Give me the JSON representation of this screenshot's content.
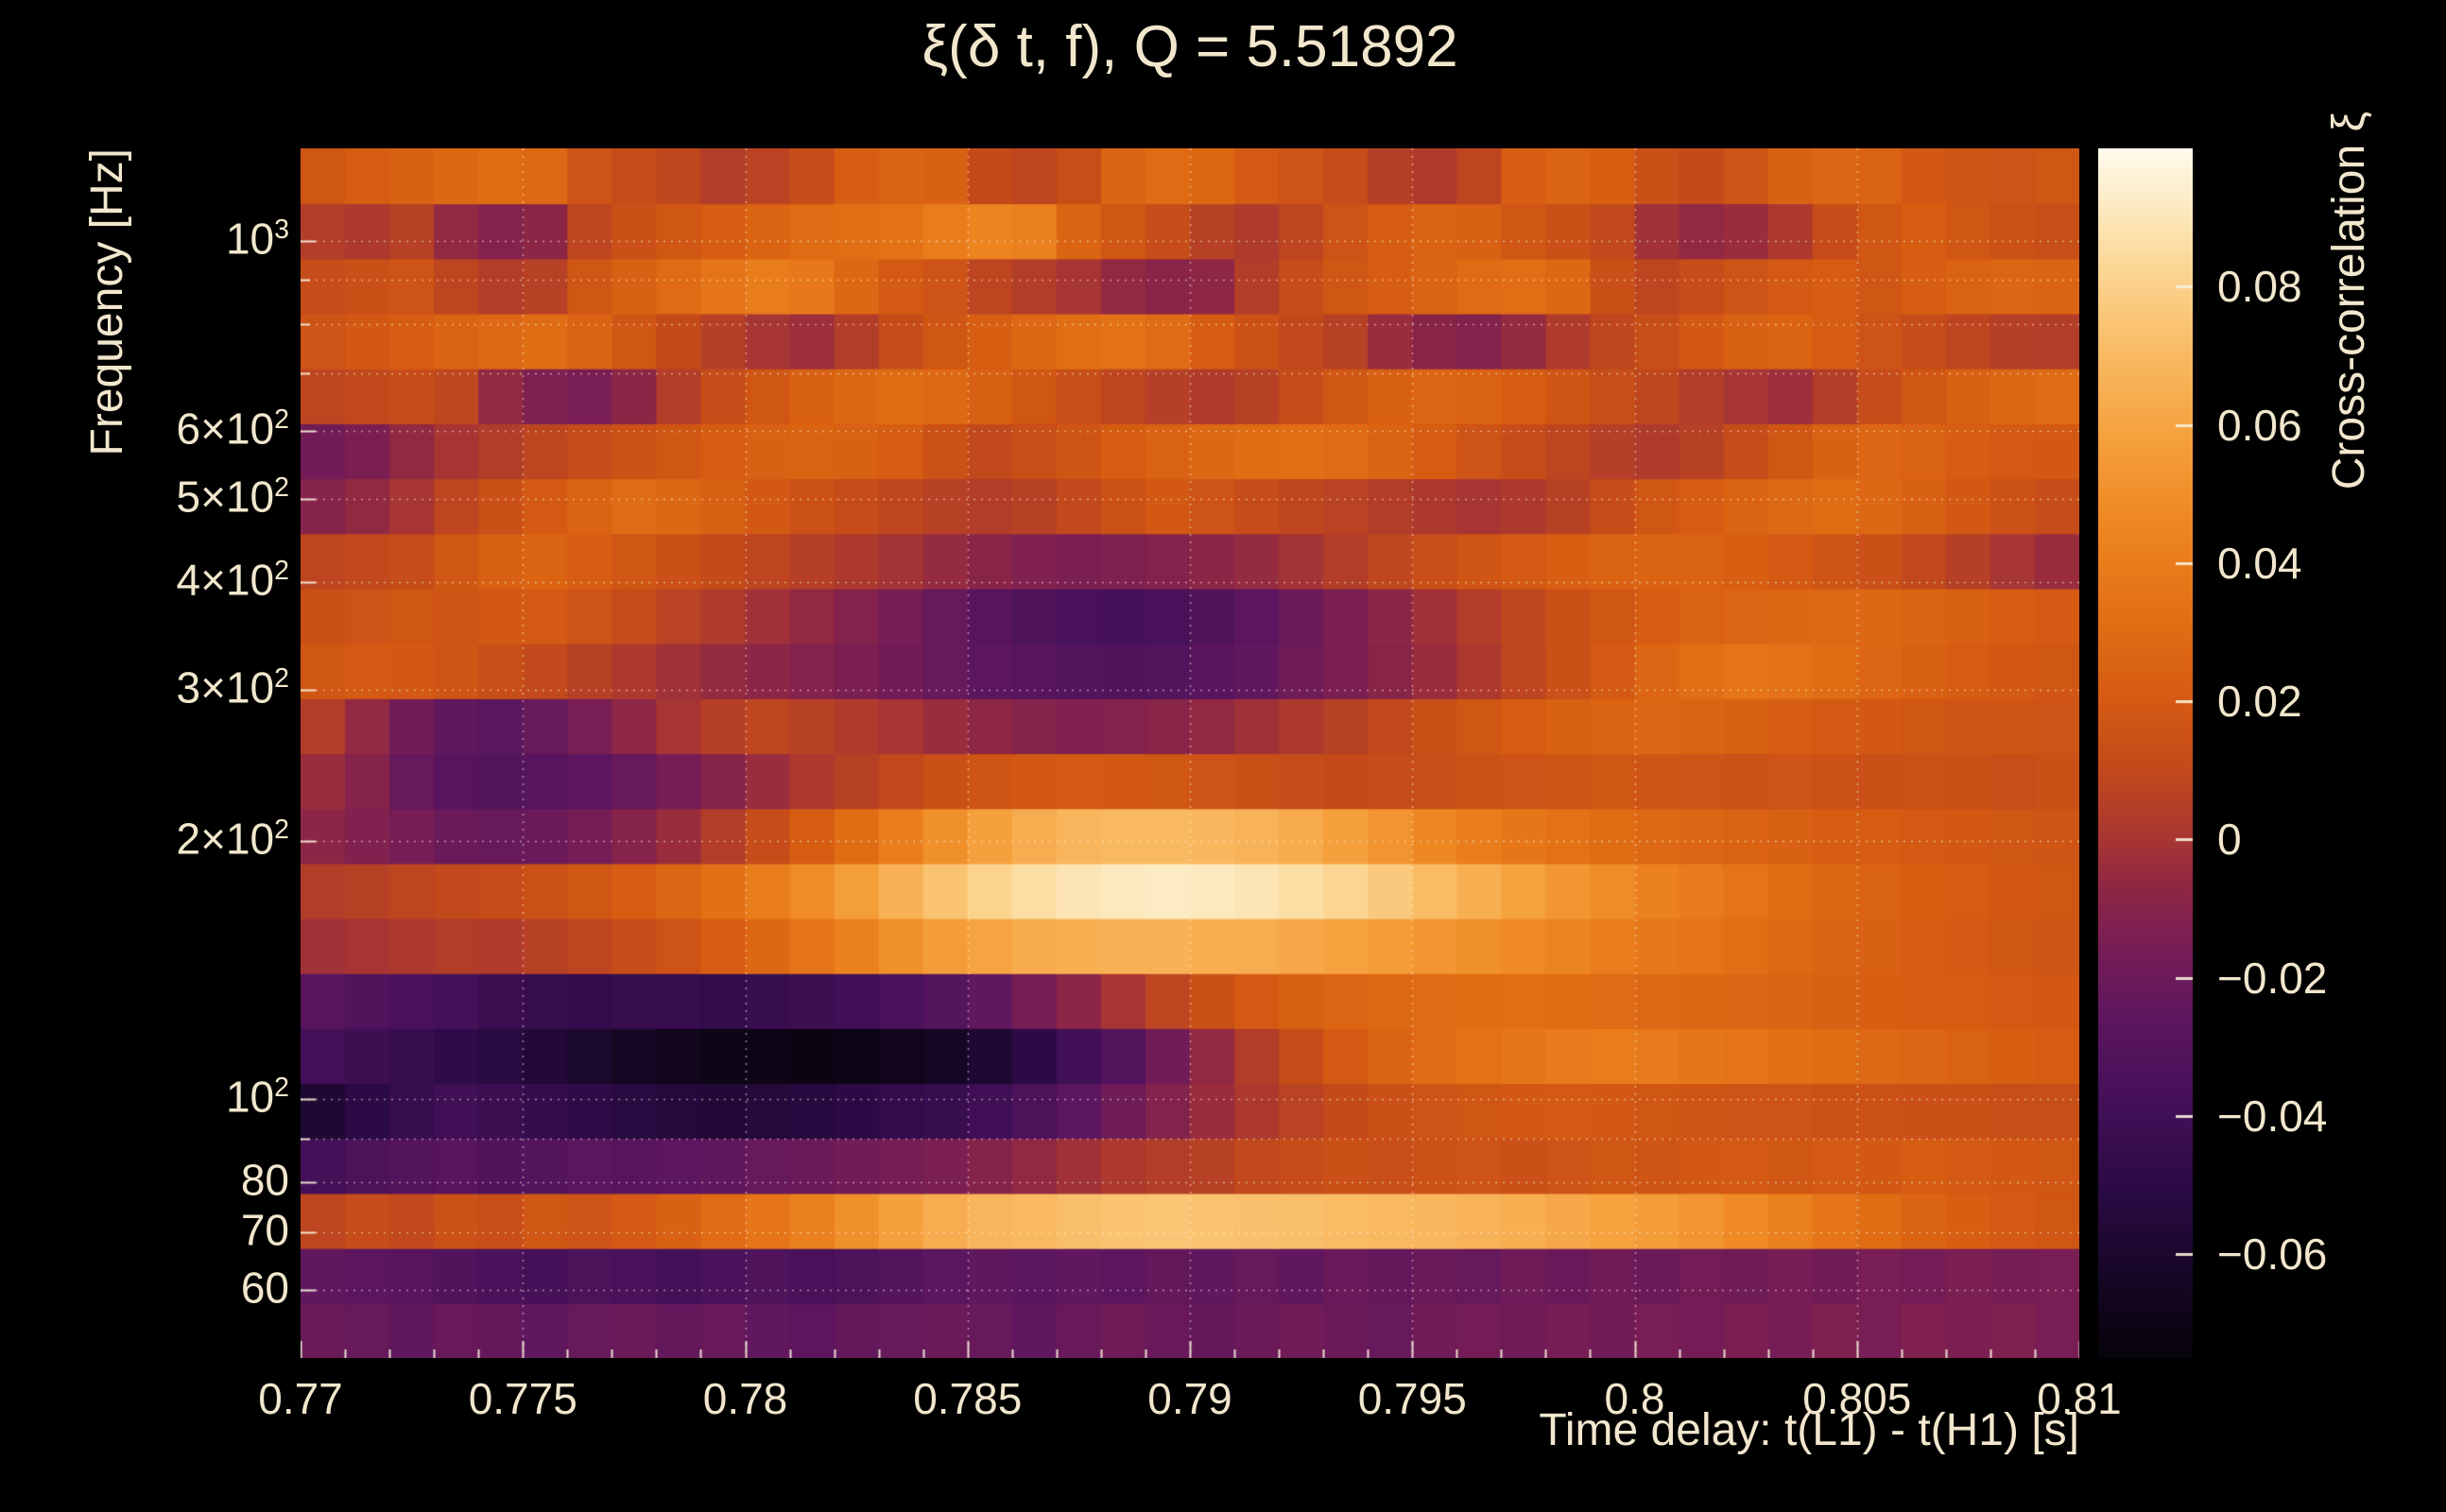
{
  "theme": {
    "background": "#000000",
    "text_color": "#f2e7cd",
    "grid_color": "rgba(255,246,224,0.55)",
    "tick_color": "rgba(248,240,220,0.9)"
  },
  "chart_data": {
    "type": "heatmap",
    "title": "ξ(δ t, f), Q = 5.51892",
    "xlabel": "Time delay: t(L1) - t(H1) [s]",
    "ylabel": "Frequency [Hz]",
    "colorbar_label": "Cross-correlation ξ",
    "x_range": [
      0.77,
      0.81
    ],
    "x_ticks": [
      0.77,
      0.775,
      0.78,
      0.785,
      0.79,
      0.795,
      0.8,
      0.805,
      0.81
    ],
    "x_tick_labels": [
      "0.77",
      "0.775",
      "0.78",
      "0.785",
      "0.79",
      "0.795",
      "0.8",
      "0.805",
      "0.81"
    ],
    "x_minor_step": 0.001,
    "y_scale": "log",
    "y_range": [
      50,
      1280.6
    ],
    "y_ticks": [
      {
        "value": 1000,
        "base": "10",
        "exp": "3"
      },
      {
        "value": 600,
        "base": "6×10",
        "exp": "2"
      },
      {
        "value": 500,
        "base": "5×10",
        "exp": "2"
      },
      {
        "value": 400,
        "base": "4×10",
        "exp": "2"
      },
      {
        "value": 300,
        "base": "3×10",
        "exp": "2"
      },
      {
        "value": 200,
        "base": "2×10",
        "exp": "2"
      },
      {
        "value": 100,
        "base": "10",
        "exp": "2"
      },
      {
        "value": 80,
        "base": "80",
        "exp": ""
      },
      {
        "value": 70,
        "base": "70",
        "exp": ""
      },
      {
        "value": 60,
        "base": "60",
        "exp": ""
      }
    ],
    "y_gridlines": [
      60,
      70,
      80,
      90,
      100,
      200,
      300,
      400,
      500,
      600,
      700,
      800,
      900,
      1000
    ],
    "color_scale": {
      "min": -0.075,
      "max": 0.1,
      "ticks": [
        0.08,
        0.06,
        0.04,
        0.02,
        0,
        -0.02,
        -0.04,
        -0.06
      ],
      "tick_labels": [
        "0.08",
        "0.06",
        "0.04",
        "0.02",
        "0",
        "−0.02",
        "−0.04",
        "−0.06"
      ]
    },
    "colormap_stops": [
      [
        0.0,
        "#060309"
      ],
      [
        0.07,
        "#170726"
      ],
      [
        0.14,
        "#2b0a45"
      ],
      [
        0.21,
        "#431058"
      ],
      [
        0.28,
        "#5c165f"
      ],
      [
        0.34,
        "#771d55"
      ],
      [
        0.39,
        "#8f2745"
      ],
      [
        0.43,
        "#a83632"
      ],
      [
        0.49,
        "#c44a1a"
      ],
      [
        0.55,
        "#d65c12"
      ],
      [
        0.62,
        "#e37115"
      ],
      [
        0.69,
        "#ee8722"
      ],
      [
        0.76,
        "#f5a03c"
      ],
      [
        0.83,
        "#f9ba62"
      ],
      [
        0.9,
        "#fbd693"
      ],
      [
        0.96,
        "#fdedc8"
      ],
      [
        1.0,
        "#fffbee"
      ]
    ],
    "freq_edges": [
      50,
      57.94,
      67.14,
      77.81,
      90.17,
      104.5,
      121.1,
      140.3,
      162.6,
      188.4,
      218.3,
      253.0,
      293.2,
      339.8,
      393.7,
      456.3,
      528.8,
      612.8,
      710.1,
      822.9,
      953.6,
      1105.2,
      1280.6
    ],
    "time_edge_start": 0.77,
    "time_step": 0.001,
    "n_cols": 40,
    "rows_order": "low-to-high-frequency",
    "values": [
      [
        -0.02,
        -0.022,
        -0.024,
        -0.021,
        -0.023,
        -0.025,
        -0.022,
        -0.02,
        -0.023,
        -0.021,
        -0.024,
        -0.026,
        -0.023,
        -0.022,
        -0.02,
        -0.022,
        -0.024,
        -0.021,
        -0.019,
        -0.021,
        -0.023,
        -0.02,
        -0.018,
        -0.02,
        -0.022,
        -0.019,
        -0.017,
        -0.019,
        -0.016,
        -0.018,
        -0.015,
        -0.017,
        -0.014,
        -0.016,
        -0.013,
        -0.015,
        -0.012,
        -0.014,
        -0.013,
        -0.015
      ],
      [
        -0.024,
        -0.026,
        -0.028,
        -0.032,
        -0.035,
        -0.037,
        -0.034,
        -0.036,
        -0.038,
        -0.035,
        -0.033,
        -0.036,
        -0.034,
        -0.03,
        -0.027,
        -0.025,
        -0.027,
        -0.024,
        -0.026,
        -0.023,
        -0.025,
        -0.022,
        -0.024,
        -0.021,
        -0.023,
        -0.02,
        -0.022,
        -0.019,
        -0.021,
        -0.018,
        -0.02,
        -0.017,
        -0.019,
        -0.016,
        -0.018,
        -0.015,
        -0.017,
        -0.014,
        -0.016,
        -0.015
      ],
      [
        0.008,
        0.012,
        0.01,
        0.015,
        0.013,
        0.018,
        0.016,
        0.02,
        0.024,
        0.03,
        0.036,
        0.042,
        0.05,
        0.058,
        0.064,
        0.068,
        0.07,
        0.072,
        0.074,
        0.075,
        0.074,
        0.073,
        0.072,
        0.071,
        0.07,
        0.069,
        0.067,
        0.065,
        0.062,
        0.059,
        0.056,
        0.052,
        0.047,
        0.042,
        0.036,
        0.031,
        0.026,
        0.023,
        0.02,
        0.018
      ],
      [
        -0.038,
        -0.034,
        -0.03,
        -0.028,
        -0.032,
        -0.03,
        -0.027,
        -0.029,
        -0.026,
        -0.024,
        -0.022,
        -0.02,
        -0.018,
        -0.016,
        -0.014,
        -0.01,
        -0.006,
        -0.002,
        0.002,
        0.004,
        0.006,
        0.01,
        0.012,
        0.014,
        0.013,
        0.015,
        0.016,
        0.014,
        0.016,
        0.018,
        0.017,
        0.019,
        0.02,
        0.018,
        0.02,
        0.019,
        0.021,
        0.02,
        0.019,
        0.018
      ],
      [
        -0.058,
        -0.05,
        -0.044,
        -0.04,
        -0.043,
        -0.046,
        -0.049,
        -0.052,
        -0.054,
        -0.056,
        -0.055,
        -0.053,
        -0.05,
        -0.047,
        -0.044,
        -0.04,
        -0.034,
        -0.027,
        -0.019,
        -0.011,
        -0.004,
        0.002,
        0.007,
        0.011,
        0.014,
        0.016,
        0.018,
        0.019,
        0.02,
        0.019,
        0.018,
        0.017,
        0.016,
        0.016,
        0.015,
        0.015,
        0.014,
        0.014,
        0.013,
        0.013
      ],
      [
        -0.038,
        -0.042,
        -0.045,
        -0.048,
        -0.052,
        -0.056,
        -0.06,
        -0.064,
        -0.067,
        -0.069,
        -0.07,
        -0.071,
        -0.07,
        -0.068,
        -0.064,
        -0.058,
        -0.05,
        -0.04,
        -0.03,
        -0.018,
        -0.006,
        0.004,
        0.012,
        0.02,
        0.026,
        0.03,
        0.034,
        0.037,
        0.039,
        0.04,
        0.039,
        0.037,
        0.035,
        0.033,
        0.031,
        0.029,
        0.027,
        0.025,
        0.023,
        0.021
      ],
      [
        -0.028,
        -0.032,
        -0.035,
        -0.038,
        -0.042,
        -0.044,
        -0.046,
        -0.045,
        -0.044,
        -0.046,
        -0.044,
        -0.042,
        -0.04,
        -0.036,
        -0.03,
        -0.024,
        -0.016,
        -0.008,
        0.0,
        0.008,
        0.014,
        0.02,
        0.024,
        0.027,
        0.029,
        0.03,
        0.031,
        0.032,
        0.031,
        0.03,
        0.029,
        0.028,
        0.027,
        0.026,
        0.024,
        0.023,
        0.022,
        0.021,
        0.02,
        0.019
      ],
      [
        -0.002,
        0.0,
        0.002,
        0.004,
        0.003,
        0.006,
        0.008,
        0.012,
        0.016,
        0.022,
        0.028,
        0.035,
        0.042,
        0.05,
        0.056,
        0.06,
        0.063,
        0.065,
        0.066,
        0.066,
        0.065,
        0.064,
        0.062,
        0.059,
        0.056,
        0.053,
        0.05,
        0.047,
        0.044,
        0.041,
        0.038,
        0.035,
        0.032,
        0.029,
        0.026,
        0.024,
        0.022,
        0.02,
        0.018,
        0.017
      ],
      [
        0.004,
        0.006,
        0.008,
        0.01,
        0.012,
        0.015,
        0.018,
        0.022,
        0.027,
        0.033,
        0.04,
        0.048,
        0.057,
        0.066,
        0.074,
        0.081,
        0.086,
        0.089,
        0.091,
        0.092,
        0.091,
        0.089,
        0.086,
        0.082,
        0.077,
        0.071,
        0.065,
        0.059,
        0.053,
        0.048,
        0.043,
        0.039,
        0.035,
        0.031,
        0.028,
        0.025,
        0.023,
        0.021,
        0.019,
        0.018
      ],
      [
        -0.008,
        -0.012,
        -0.016,
        -0.02,
        -0.022,
        -0.02,
        -0.016,
        -0.01,
        -0.004,
        0.004,
        0.012,
        0.021,
        0.031,
        0.041,
        0.05,
        0.058,
        0.064,
        0.068,
        0.07,
        0.07,
        0.069,
        0.067,
        0.063,
        0.058,
        0.052,
        0.046,
        0.041,
        0.037,
        0.034,
        0.031,
        0.029,
        0.027,
        0.025,
        0.024,
        0.022,
        0.021,
        0.02,
        0.019,
        0.018,
        0.017
      ],
      [
        -0.004,
        -0.01,
        -0.022,
        -0.028,
        -0.031,
        -0.029,
        -0.026,
        -0.022,
        -0.016,
        -0.01,
        -0.004,
        0.002,
        0.006,
        0.01,
        0.014,
        0.017,
        0.019,
        0.02,
        0.019,
        0.018,
        0.016,
        0.014,
        0.012,
        0.011,
        0.012,
        0.013,
        0.015,
        0.016,
        0.017,
        0.018,
        0.017,
        0.016,
        0.015,
        0.016,
        0.015,
        0.014,
        0.015,
        0.014,
        0.013,
        0.014
      ],
      [
        0.004,
        -0.006,
        -0.018,
        -0.025,
        -0.027,
        -0.022,
        -0.015,
        -0.007,
        0.0,
        0.005,
        0.008,
        0.006,
        0.003,
        0.0,
        -0.004,
        -0.007,
        -0.01,
        -0.012,
        -0.011,
        -0.009,
        -0.006,
        -0.002,
        0.002,
        0.006,
        0.01,
        0.014,
        0.018,
        0.021,
        0.024,
        0.026,
        0.027,
        0.026,
        0.024,
        0.022,
        0.02,
        0.019,
        0.018,
        0.017,
        0.017,
        0.016
      ],
      [
        0.018,
        0.02,
        0.019,
        0.017,
        0.013,
        0.01,
        0.006,
        0.002,
        -0.002,
        -0.005,
        -0.008,
        -0.011,
        -0.014,
        -0.018,
        -0.022,
        -0.026,
        -0.029,
        -0.031,
        -0.032,
        -0.031,
        -0.028,
        -0.024,
        -0.019,
        -0.014,
        -0.009,
        -0.004,
        0.002,
        0.008,
        0.014,
        0.02,
        0.027,
        0.032,
        0.035,
        0.034,
        0.031,
        0.027,
        0.024,
        0.021,
        0.019,
        0.018
      ],
      [
        0.014,
        0.016,
        0.018,
        0.017,
        0.019,
        0.02,
        0.016,
        0.012,
        0.007,
        0.003,
        -0.002,
        -0.006,
        -0.011,
        -0.016,
        -0.022,
        -0.028,
        -0.033,
        -0.036,
        -0.037,
        -0.036,
        -0.032,
        -0.026,
        -0.02,
        -0.014,
        -0.008,
        -0.002,
        0.004,
        0.009,
        0.014,
        0.018,
        0.022,
        0.025,
        0.027,
        0.028,
        0.029,
        0.028,
        0.026,
        0.024,
        0.022,
        0.02
      ],
      [
        0.008,
        0.01,
        0.012,
        0.018,
        0.024,
        0.026,
        0.022,
        0.018,
        0.014,
        0.011,
        0.008,
        0.005,
        0.002,
        -0.001,
        -0.005,
        -0.009,
        -0.012,
        -0.014,
        -0.013,
        -0.011,
        -0.008,
        -0.005,
        -0.001,
        0.004,
        0.009,
        0.013,
        0.017,
        0.02,
        0.023,
        0.025,
        0.026,
        0.025,
        0.023,
        0.02,
        0.017,
        0.014,
        0.01,
        0.005,
        0.0,
        -0.004
      ],
      [
        -0.01,
        -0.006,
        0.0,
        0.008,
        0.014,
        0.02,
        0.026,
        0.03,
        0.028,
        0.024,
        0.019,
        0.015,
        0.012,
        0.009,
        0.006,
        0.004,
        0.006,
        0.01,
        0.015,
        0.019,
        0.016,
        0.012,
        0.009,
        0.007,
        0.004,
        0.002,
        0.0,
        0.002,
        0.006,
        0.012,
        0.018,
        0.022,
        0.026,
        0.029,
        0.031,
        0.028,
        0.024,
        0.019,
        0.015,
        0.012
      ],
      [
        -0.018,
        -0.014,
        -0.006,
        0.0,
        0.004,
        0.008,
        0.012,
        0.015,
        0.018,
        0.021,
        0.024,
        0.026,
        0.024,
        0.021,
        0.015,
        0.01,
        0.013,
        0.017,
        0.021,
        0.025,
        0.028,
        0.031,
        0.032,
        0.03,
        0.026,
        0.021,
        0.016,
        0.012,
        0.008,
        0.005,
        0.003,
        0.006,
        0.012,
        0.018,
        0.024,
        0.027,
        0.025,
        0.022,
        0.02,
        0.019
      ],
      [
        0.008,
        0.01,
        0.012,
        0.009,
        -0.006,
        -0.013,
        -0.015,
        -0.008,
        0.004,
        0.012,
        0.018,
        0.024,
        0.028,
        0.031,
        0.029,
        0.024,
        0.018,
        0.013,
        0.008,
        0.005,
        0.003,
        0.006,
        0.012,
        0.018,
        0.024,
        0.027,
        0.025,
        0.021,
        0.017,
        0.013,
        0.009,
        0.004,
        0.0,
        -0.003,
        0.004,
        0.012,
        0.018,
        0.024,
        0.028,
        0.03
      ],
      [
        0.016,
        0.019,
        0.022,
        0.026,
        0.029,
        0.031,
        0.026,
        0.018,
        0.011,
        0.005,
        0.0,
        -0.003,
        0.004,
        0.012,
        0.018,
        0.023,
        0.028,
        0.032,
        0.034,
        0.03,
        0.022,
        0.015,
        0.01,
        0.006,
        -0.004,
        -0.009,
        -0.011,
        -0.005,
        0.003,
        0.009,
        0.013,
        0.019,
        0.024,
        0.026,
        0.021,
        0.016,
        0.012,
        0.008,
        0.005,
        0.004
      ],
      [
        0.012,
        0.014,
        0.016,
        0.008,
        0.004,
        0.006,
        0.018,
        0.024,
        0.03,
        0.036,
        0.04,
        0.038,
        0.028,
        0.02,
        0.016,
        0.008,
        0.004,
        0.0,
        -0.006,
        -0.009,
        -0.007,
        0.004,
        0.012,
        0.018,
        0.022,
        0.026,
        0.03,
        0.032,
        0.028,
        0.014,
        0.008,
        0.012,
        0.016,
        0.02,
        0.022,
        0.018,
        0.022,
        0.025,
        0.027,
        0.026
      ],
      [
        0.004,
        0.002,
        0.006,
        -0.006,
        -0.011,
        -0.008,
        0.008,
        0.014,
        0.018,
        0.022,
        0.026,
        0.03,
        0.032,
        0.034,
        0.04,
        0.044,
        0.042,
        0.026,
        0.018,
        0.012,
        0.006,
        0.003,
        0.008,
        0.016,
        0.022,
        0.026,
        0.024,
        0.018,
        0.014,
        0.01,
        -0.002,
        -0.006,
        -0.004,
        0.002,
        0.012,
        0.018,
        0.022,
        0.018,
        0.015,
        0.013
      ],
      [
        0.018,
        0.021,
        0.024,
        0.028,
        0.031,
        0.029,
        0.016,
        0.012,
        0.009,
        0.004,
        0.007,
        0.012,
        0.022,
        0.026,
        0.024,
        0.011,
        0.008,
        0.013,
        0.026,
        0.03,
        0.028,
        0.02,
        0.016,
        0.012,
        0.005,
        0.003,
        0.008,
        0.022,
        0.026,
        0.023,
        0.014,
        0.011,
        0.016,
        0.024,
        0.027,
        0.025,
        0.019,
        0.017,
        0.016,
        0.018
      ]
    ]
  }
}
